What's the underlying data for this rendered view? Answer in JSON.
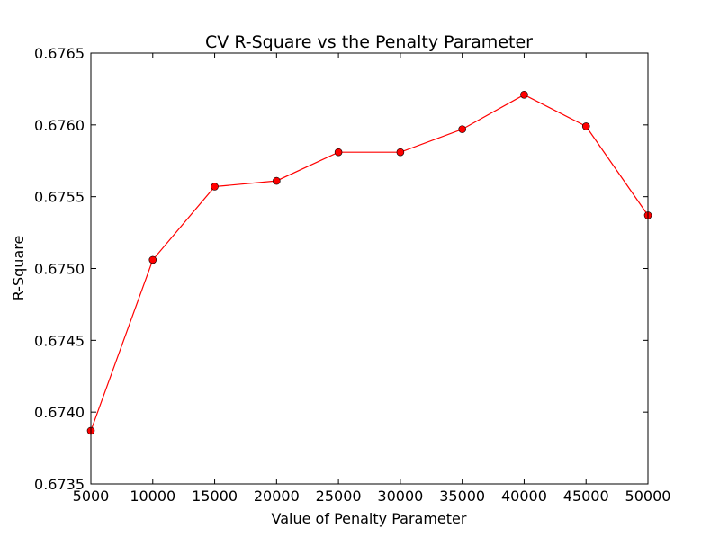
{
  "chart_data": {
    "type": "line",
    "title": "CV R-Square vs the Penalty Parameter",
    "xlabel": "Value of Penalty Parameter",
    "ylabel": "R-Square",
    "xlim": [
      5000,
      50000
    ],
    "ylim": [
      0.6735,
      0.6765
    ],
    "x_ticks": [
      "5000",
      "10000",
      "15000",
      "20000",
      "25000",
      "30000",
      "35000",
      "40000",
      "45000",
      "50000"
    ],
    "y_ticks": [
      "0.6735",
      "0.6740",
      "0.6745",
      "0.6750",
      "0.6755",
      "0.6760",
      "0.6765"
    ],
    "x_tick_values": [
      5000,
      10000,
      15000,
      20000,
      25000,
      30000,
      35000,
      40000,
      45000,
      50000
    ],
    "y_tick_values": [
      0.6735,
      0.674,
      0.6745,
      0.675,
      0.6755,
      0.676,
      0.6765
    ],
    "grid": false,
    "series": [
      {
        "x": [
          5000,
          10000,
          15000,
          20000,
          25000,
          30000,
          35000,
          40000,
          45000,
          50000
        ],
        "values": [
          0.67387,
          0.67506,
          0.67557,
          0.67561,
          0.67581,
          0.67581,
          0.67597,
          0.67621,
          0.67599,
          0.67537
        ],
        "color": "#ff0000",
        "marker": "circle"
      }
    ]
  }
}
